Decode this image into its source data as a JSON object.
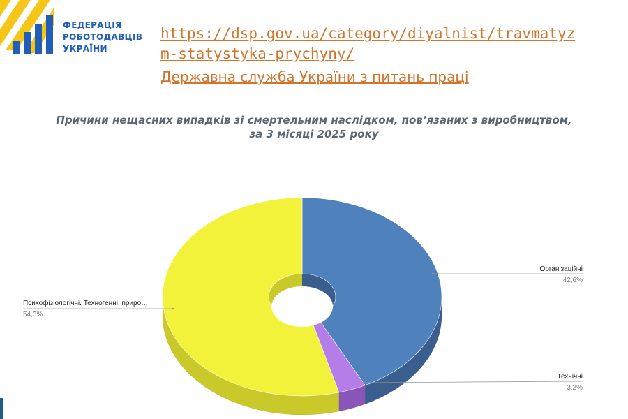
{
  "header": {
    "org_name": [
      "ФЕДЕРАЦІЯ",
      "РОБОТОДАВЦІВ",
      "УКРАЇНИ"
    ],
    "source_url_line1": "https://dsp.gov.ua/category/diyalnist/travmatyz",
    "source_url_line2": "m-statystyka-prychyny/",
    "source_agency": "Державна служба України з питань праці"
  },
  "colors": {
    "yellow": "#f2f23a",
    "yellow_dark": "#c9c92a",
    "blue": "#4f81bd",
    "blue_dark": "#3a5f8e",
    "purple": "#b57de8",
    "purple_dark": "#8a55b8",
    "link": "#d2742a",
    "logo_blue": "#1f5fb8",
    "logo_yellow": "#f5c518"
  },
  "chart_data": {
    "type": "pie",
    "style": "3d-doughnut",
    "title": "Причини нещасних випадків зі смертельним наслідком, пов’язаних з виробництвом, за 3 місяці 2025 року",
    "slices": [
      {
        "label": "Організаційні",
        "value": 42.6,
        "value_label": "42,6%",
        "color": "#4f81bd"
      },
      {
        "label": "Технічні",
        "value": 3.2,
        "value_label": "3,2%",
        "color": "#b57de8"
      },
      {
        "label": "Психофізіологічні. Техногенні, приро…",
        "value": 54.3,
        "value_label": "54,3%",
        "color": "#f2f23a"
      }
    ]
  }
}
